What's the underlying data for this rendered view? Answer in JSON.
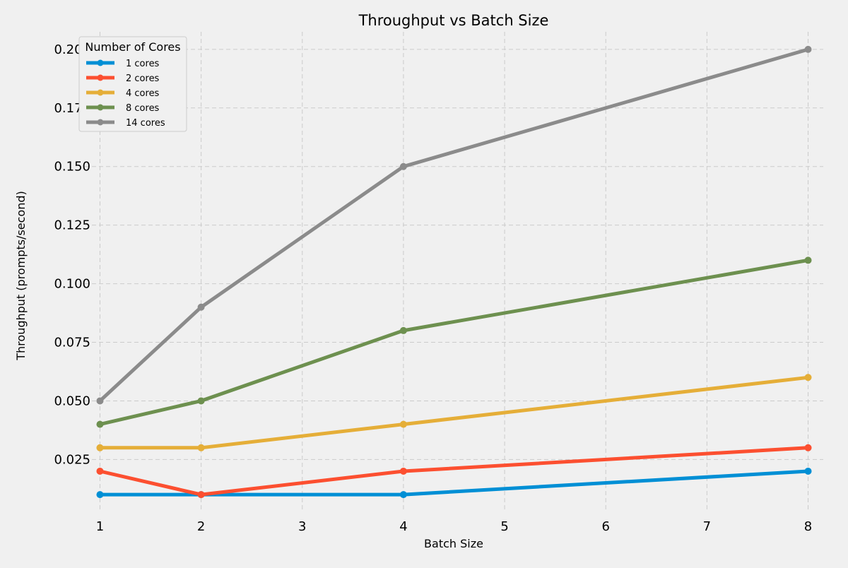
{
  "chart_data": {
    "type": "line",
    "title": "Throughput vs Batch Size",
    "xlabel": "Batch Size",
    "ylabel": "Throughput (prompts/second)",
    "xlim": [
      0.85,
      8.15
    ],
    "ylim": [
      0.0025,
      0.2075
    ],
    "x_ticks": [
      1,
      2,
      3,
      4,
      5,
      6,
      7,
      8
    ],
    "x_tick_labels": [
      "1",
      "2",
      "3",
      "4",
      "5",
      "6",
      "7",
      "8"
    ],
    "y_ticks": [
      0.025,
      0.05,
      0.075,
      0.1,
      0.125,
      0.15,
      0.175,
      0.2
    ],
    "y_tick_labels": [
      "0.025",
      "0.050",
      "0.075",
      "0.100",
      "0.125",
      "0.150",
      "0.175",
      "0.200"
    ],
    "grid": true,
    "legend": {
      "title": "Number of Cores",
      "placement": "top-left"
    },
    "x": [
      1,
      2,
      4,
      8
    ],
    "series": [
      {
        "name": "1 cores",
        "color": "#008fd5",
        "values": [
          0.01,
          0.01,
          0.01,
          0.02
        ]
      },
      {
        "name": "2 cores",
        "color": "#fc4f30",
        "values": [
          0.02,
          0.01,
          0.02,
          0.03
        ]
      },
      {
        "name": "4 cores",
        "color": "#e5ae38",
        "values": [
          0.03,
          0.03,
          0.04,
          0.06
        ]
      },
      {
        "name": "8 cores",
        "color": "#6d904f",
        "values": [
          0.04,
          0.05,
          0.08,
          0.11
        ]
      },
      {
        "name": "14 cores",
        "color": "#8b8b8b",
        "values": [
          0.05,
          0.09,
          0.15,
          0.2
        ]
      }
    ]
  }
}
